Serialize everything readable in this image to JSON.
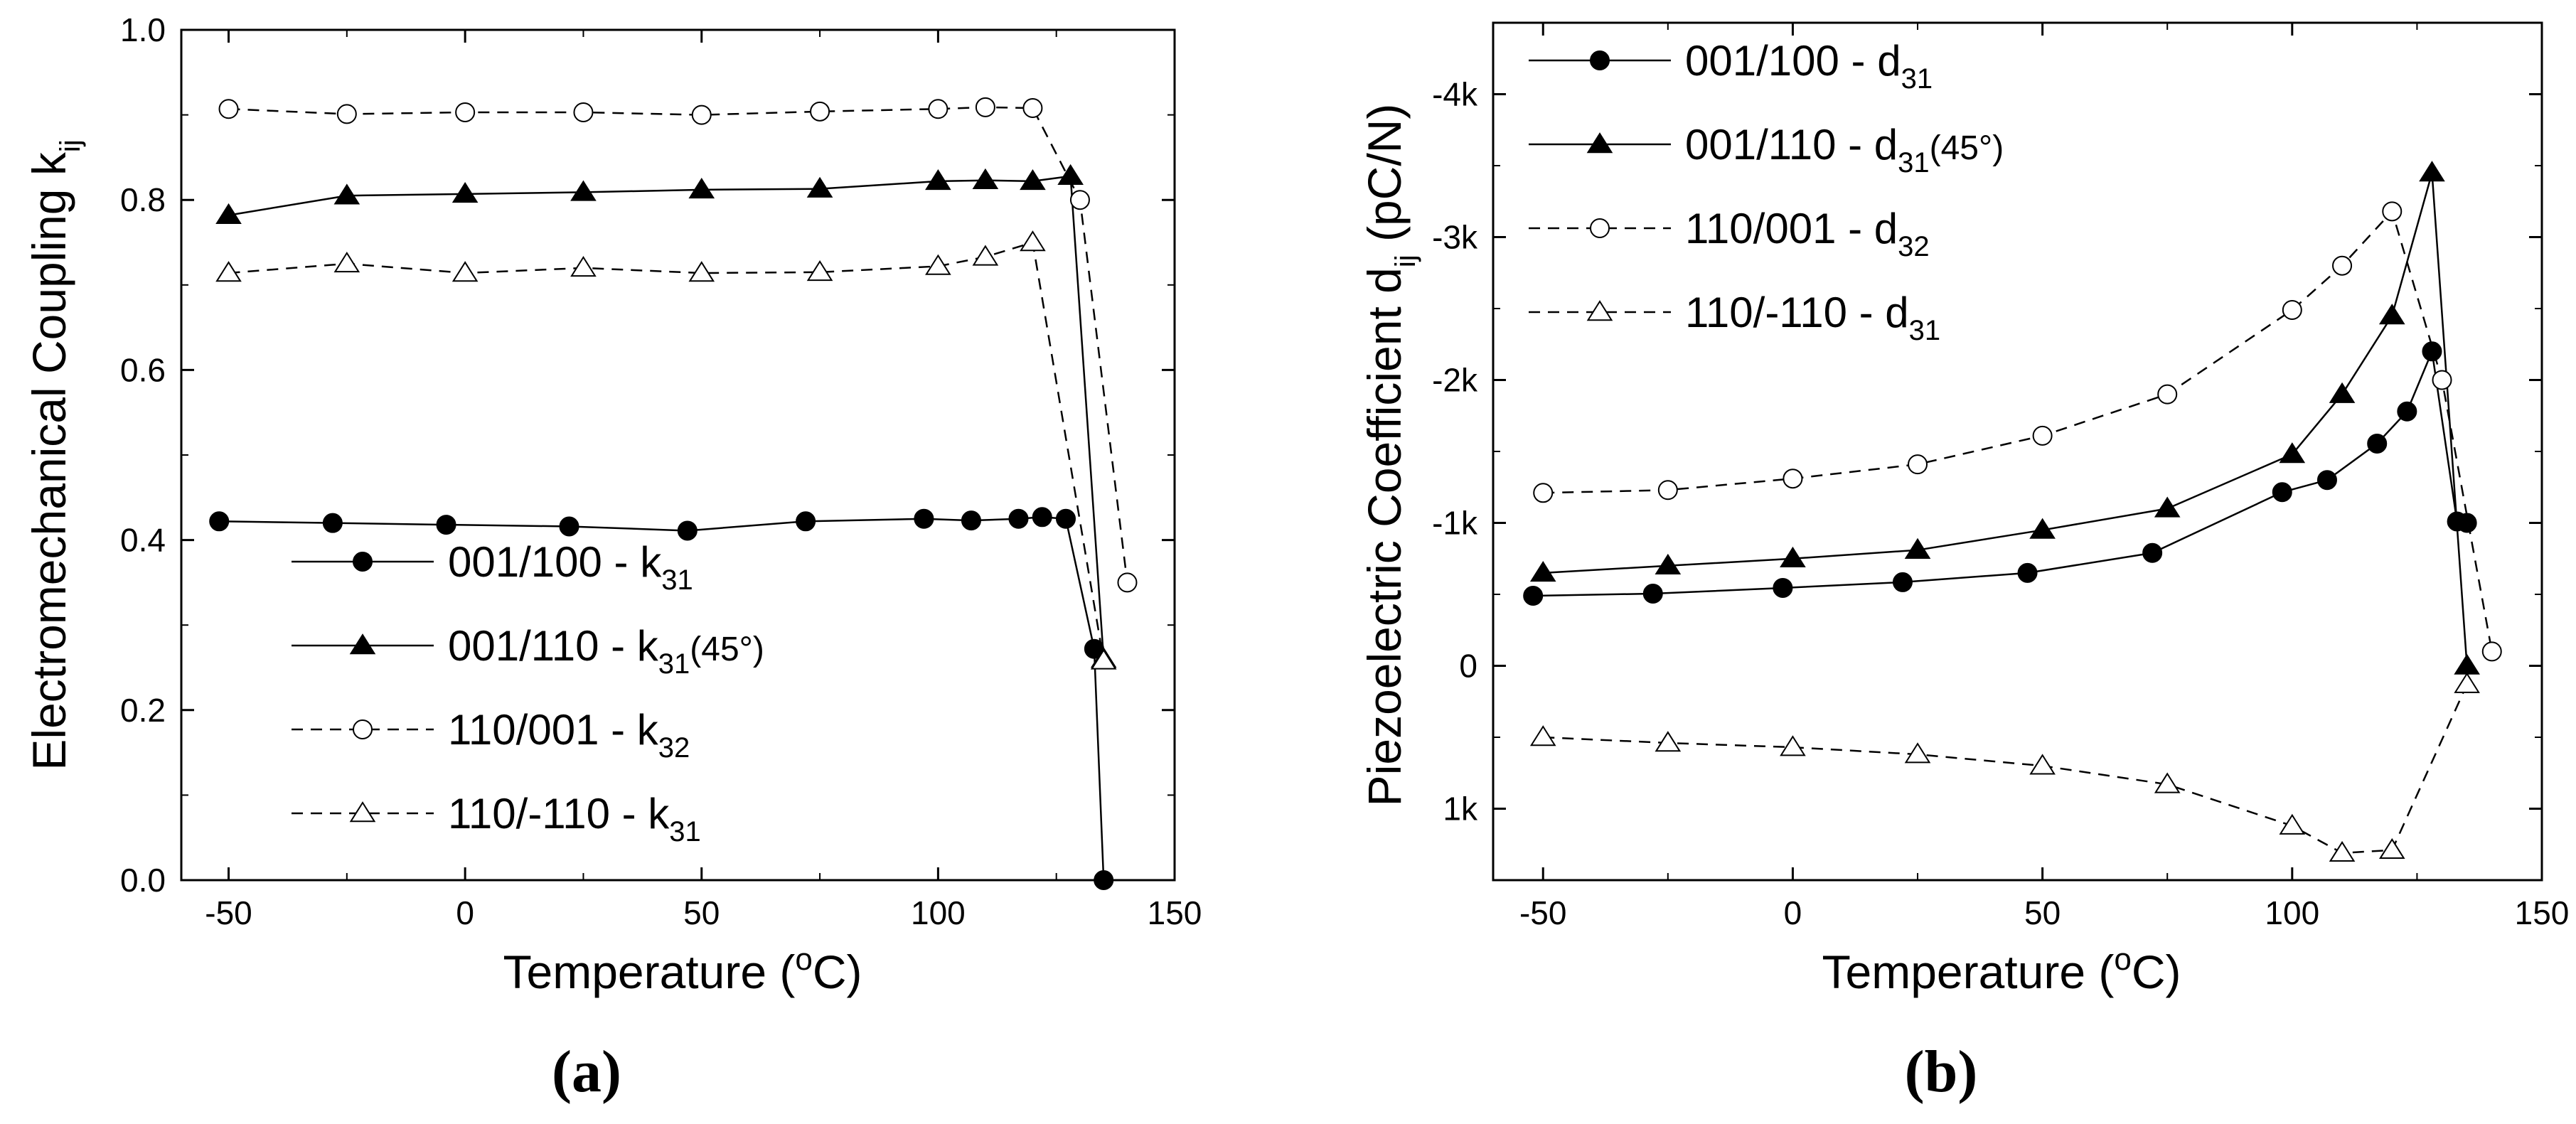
{
  "chart_data": [
    {
      "id": "a",
      "type": "line",
      "panel_label": "(a)",
      "xlabel_pre": "Temperature (",
      "xlabel_deg": "o",
      "xlabel_post": "C)",
      "ylabel_pre": "Electromechanical Coupling k",
      "ylabel_sub": "ij",
      "xlim": [
        -60,
        150
      ],
      "ylim": [
        0.0,
        1.0
      ],
      "xticks": [
        -50,
        0,
        50,
        100,
        150
      ],
      "xtick_labels": [
        "-50",
        "0",
        "50",
        "100",
        "150"
      ],
      "yticks": [
        0.0,
        0.2,
        0.4,
        0.6,
        0.8,
        1.0
      ],
      "ytick_labels": [
        "0.0",
        "0.2",
        "0.4",
        "0.6",
        "0.8",
        "1.0"
      ],
      "legend_position": "bottom-left",
      "series": [
        {
          "name": "001/100 - k31",
          "legend_main": "001/100  - k",
          "legend_sub": "31",
          "legend_tail": "",
          "marker": "circle-filled",
          "dash": false,
          "points": [
            [
              -52,
              0.422
            ],
            [
              -28,
              0.42
            ],
            [
              -4,
              0.418
            ],
            [
              22,
              0.416
            ],
            [
              47,
              0.411
            ],
            [
              72,
              0.422
            ],
            [
              97,
              0.425
            ],
            [
              107,
              0.423
            ],
            [
              117,
              0.425
            ],
            [
              122,
              0.427
            ],
            [
              127,
              0.425
            ],
            [
              133,
              0.272
            ],
            [
              135,
              0.0
            ]
          ]
        },
        {
          "name": "001/110 - k31(45°)",
          "legend_main": "001/110  - k",
          "legend_sub": "31",
          "legend_tail": "(45°)",
          "marker": "triangle-filled",
          "dash": false,
          "points": [
            [
              -50,
              0.782
            ],
            [
              -25,
              0.805
            ],
            [
              0,
              0.807
            ],
            [
              25,
              0.809
            ],
            [
              50,
              0.812
            ],
            [
              75,
              0.813
            ],
            [
              100,
              0.822
            ],
            [
              110,
              0.823
            ],
            [
              120,
              0.822
            ],
            [
              128,
              0.828
            ],
            [
              135,
              0.26
            ]
          ]
        },
        {
          "name": "110/001 - k32",
          "legend_main": "110/001  - k",
          "legend_sub": "32",
          "legend_tail": "",
          "marker": "circle-open",
          "dash": true,
          "points": [
            [
              -50,
              0.907
            ],
            [
              -25,
              0.901
            ],
            [
              0,
              0.903
            ],
            [
              25,
              0.903
            ],
            [
              50,
              0.9
            ],
            [
              75,
              0.904
            ],
            [
              100,
              0.907
            ],
            [
              110,
              0.909
            ],
            [
              120,
              0.908
            ],
            [
              130,
              0.8
            ],
            [
              140,
              0.35
            ]
          ]
        },
        {
          "name": "110/-110 - k31",
          "legend_main": "110/-110 - k",
          "legend_sub": "31",
          "legend_tail": "",
          "marker": "triangle-open",
          "dash": true,
          "points": [
            [
              -50,
              0.714
            ],
            [
              -25,
              0.725
            ],
            [
              0,
              0.714
            ],
            [
              25,
              0.72
            ],
            [
              50,
              0.714
            ],
            [
              75,
              0.715
            ],
            [
              100,
              0.722
            ],
            [
              110,
              0.733
            ],
            [
              120,
              0.75
            ],
            [
              135,
              0.258
            ]
          ]
        }
      ]
    },
    {
      "id": "b",
      "type": "line",
      "panel_label": "(b)",
      "xlabel_pre": "Temperature (",
      "xlabel_deg": "o",
      "xlabel_post": "C)",
      "ylabel_pre": "Piezoelectric Coefficient d",
      "ylabel_sub": "ij",
      "ylabel_post": " (pC/N)",
      "xlim": [
        -60,
        150
      ],
      "ylim": [
        1500,
        -4500
      ],
      "ylim_note": "inverted axis: negative values up",
      "xticks": [
        -50,
        0,
        50,
        100,
        150
      ],
      "xtick_labels": [
        "-50",
        "0",
        "50",
        "100",
        "150"
      ],
      "yticks": [
        1000,
        0,
        -1000,
        -2000,
        -3000,
        -4000
      ],
      "ytick_labels": [
        "1k",
        "0",
        "-1k",
        "-2k",
        "-3k",
        "-4k"
      ],
      "legend_position": "top-left",
      "series": [
        {
          "name": "001/100 - d31",
          "legend_main": "001/100  - d",
          "legend_sub": "31",
          "legend_tail": "",
          "marker": "circle-filled",
          "dash": false,
          "points": [
            [
              -52,
              -490
            ],
            [
              -28,
              -505
            ],
            [
              -2,
              -545
            ],
            [
              22,
              -585
            ],
            [
              47,
              -650
            ],
            [
              72,
              -790
            ],
            [
              98,
              -1215
            ],
            [
              107,
              -1300
            ],
            [
              117,
              -1555
            ],
            [
              123,
              -1780
            ],
            [
              128,
              -2200
            ],
            [
              133,
              -1010
            ],
            [
              135,
              -1000
            ]
          ]
        },
        {
          "name": "001/110 - d31(45°)",
          "legend_main": "001/110  - d",
          "legend_sub": "31",
          "legend_tail": "(45°)",
          "marker": "triangle-filled",
          "dash": false,
          "points": [
            [
              -50,
              -650
            ],
            [
              -25,
              -700
            ],
            [
              0,
              -750
            ],
            [
              25,
              -810
            ],
            [
              50,
              -950
            ],
            [
              75,
              -1100
            ],
            [
              100,
              -1480
            ],
            [
              110,
              -1900
            ],
            [
              120,
              -2450
            ],
            [
              128,
              -3450
            ],
            [
              135,
              0
            ]
          ]
        },
        {
          "name": "110/001 - d32",
          "legend_main": "110/001  - d",
          "legend_sub": "32",
          "legend_tail": "",
          "marker": "circle-open",
          "dash": true,
          "points": [
            [
              -50,
              -1210
            ],
            [
              -25,
              -1230
            ],
            [
              0,
              -1310
            ],
            [
              25,
              -1410
            ],
            [
              50,
              -1610
            ],
            [
              75,
              -1900
            ],
            [
              100,
              -2490
            ],
            [
              110,
              -2800
            ],
            [
              120,
              -3180
            ],
            [
              130,
              -2000
            ],
            [
              140,
              -100
            ]
          ]
        },
        {
          "name": "110/-110 - d31",
          "legend_main": "110/-110 - d",
          "legend_sub": "31",
          "legend_tail": "",
          "marker": "triangle-open",
          "dash": true,
          "points": [
            [
              -50,
              500
            ],
            [
              -25,
              540
            ],
            [
              0,
              570
            ],
            [
              25,
              620
            ],
            [
              50,
              700
            ],
            [
              75,
              830
            ],
            [
              100,
              1120
            ],
            [
              110,
              1310
            ],
            [
              120,
              1290
            ],
            [
              135,
              130
            ]
          ]
        }
      ]
    }
  ]
}
